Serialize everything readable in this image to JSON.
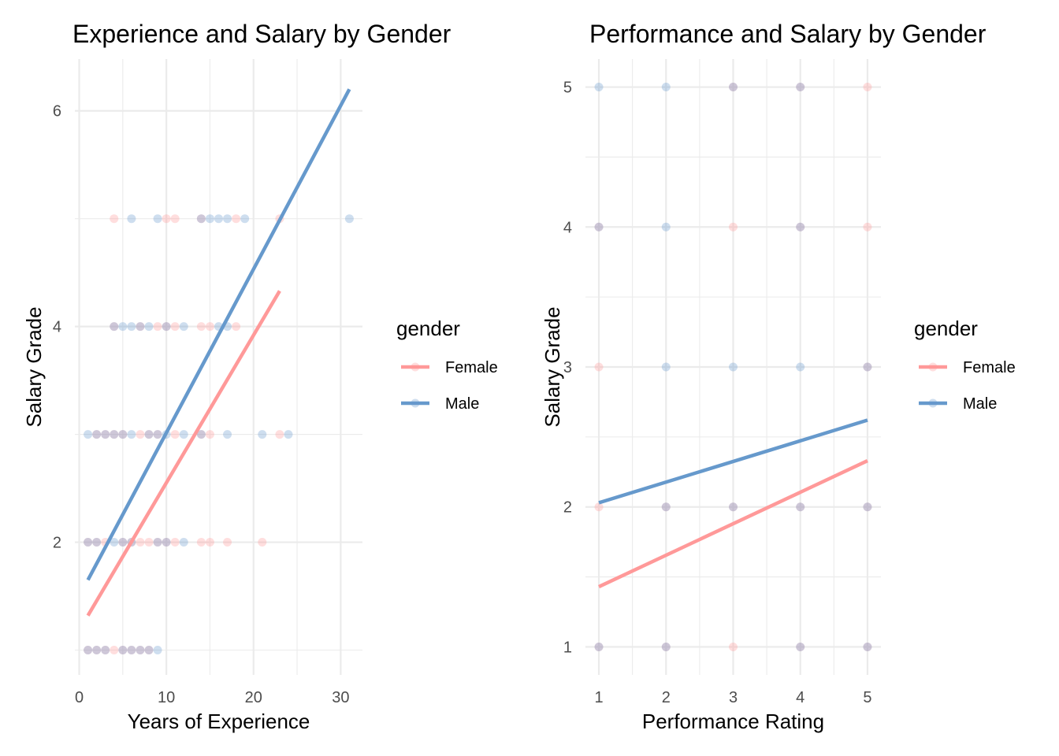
{
  "chart_data": [
    {
      "type": "scatter",
      "title": "Experience and Salary by Gender",
      "xlabel": "Years of Experience",
      "ylabel": "Salary Grade",
      "xlim": [
        -0.5,
        32.5
      ],
      "ylim": [
        0.77,
        6.48
      ],
      "x_ticks": [
        0,
        10,
        20,
        30
      ],
      "y_ticks": [
        2,
        4,
        6
      ],
      "x_minor": [
        5,
        15,
        25
      ],
      "y_minor": [
        1,
        3,
        5
      ],
      "grid": true,
      "legend": {
        "title": "gender",
        "position": "right",
        "entries": [
          "Female",
          "Male"
        ]
      },
      "colors": {
        "Female": "#ff9999",
        "Male": "#6699cc"
      },
      "series": [
        {
          "name": "Female",
          "points": [
            [
              1,
              1
            ],
            [
              2,
              1
            ],
            [
              3,
              1
            ],
            [
              4,
              1
            ],
            [
              5,
              1
            ],
            [
              6,
              1
            ],
            [
              7,
              1
            ],
            [
              8,
              1
            ],
            [
              1,
              2
            ],
            [
              2,
              2
            ],
            [
              3,
              2
            ],
            [
              5,
              2
            ],
            [
              6,
              2
            ],
            [
              7,
              2
            ],
            [
              8,
              2
            ],
            [
              9,
              2
            ],
            [
              10,
              2
            ],
            [
              11,
              2
            ],
            [
              14,
              2
            ],
            [
              15,
              2
            ],
            [
              17,
              2
            ],
            [
              21,
              2
            ],
            [
              2,
              3
            ],
            [
              3,
              3
            ],
            [
              4,
              3
            ],
            [
              5,
              3
            ],
            [
              7,
              3
            ],
            [
              8,
              3
            ],
            [
              9,
              3
            ],
            [
              11,
              3
            ],
            [
              14,
              3
            ],
            [
              15,
              3
            ],
            [
              23,
              3
            ],
            [
              4,
              4
            ],
            [
              7,
              4
            ],
            [
              9,
              4
            ],
            [
              10,
              4
            ],
            [
              11,
              4
            ],
            [
              14,
              4
            ],
            [
              15,
              4
            ],
            [
              18,
              4
            ],
            [
              4,
              5
            ],
            [
              10,
              5
            ],
            [
              11,
              5
            ],
            [
              14,
              5
            ],
            [
              18,
              5
            ],
            [
              23,
              5
            ]
          ],
          "fit": {
            "x": [
              1,
              23
            ],
            "y": [
              1.32,
              4.33
            ]
          }
        },
        {
          "name": "Male",
          "points": [
            [
              1,
              1
            ],
            [
              2,
              1
            ],
            [
              3,
              1
            ],
            [
              5,
              1
            ],
            [
              6,
              1
            ],
            [
              7,
              1
            ],
            [
              8,
              1
            ],
            [
              9,
              1
            ],
            [
              1,
              2
            ],
            [
              2,
              2
            ],
            [
              4,
              2
            ],
            [
              5,
              2
            ],
            [
              6,
              2
            ],
            [
              9,
              2
            ],
            [
              10,
              2
            ],
            [
              12,
              2
            ],
            [
              1,
              3
            ],
            [
              2,
              3
            ],
            [
              3,
              3
            ],
            [
              4,
              3
            ],
            [
              5,
              3
            ],
            [
              6,
              3
            ],
            [
              8,
              3
            ],
            [
              9,
              3
            ],
            [
              10,
              3
            ],
            [
              12,
              3
            ],
            [
              14,
              3
            ],
            [
              17,
              3
            ],
            [
              21,
              3
            ],
            [
              24,
              3
            ],
            [
              4,
              4
            ],
            [
              5,
              4
            ],
            [
              6,
              4
            ],
            [
              7,
              4
            ],
            [
              8,
              4
            ],
            [
              10,
              4
            ],
            [
              12,
              4
            ],
            [
              16,
              4
            ],
            [
              17,
              4
            ],
            [
              6,
              5
            ],
            [
              9,
              5
            ],
            [
              14,
              5
            ],
            [
              15,
              5
            ],
            [
              16,
              5
            ],
            [
              17,
              5
            ],
            [
              19,
              5
            ],
            [
              31,
              5
            ]
          ],
          "fit": {
            "x": [
              1,
              31
            ],
            "y": [
              1.65,
              6.2
            ]
          }
        }
      ]
    },
    {
      "type": "scatter",
      "title": "Performance and Salary by Gender",
      "xlabel": "Performance Rating",
      "ylabel": "Salary Grade",
      "xlim": [
        0.8,
        5.2
      ],
      "ylim": [
        0.8,
        5.2
      ],
      "x_ticks": [
        1,
        2,
        3,
        4,
        5
      ],
      "y_ticks": [
        1,
        2,
        3,
        4,
        5
      ],
      "x_minor": [
        1.5,
        2.5,
        3.5,
        4.5
      ],
      "y_minor": [
        1.5,
        2.5,
        3.5,
        4.5
      ],
      "grid": true,
      "legend": {
        "title": "gender",
        "position": "right",
        "entries": [
          "Female",
          "Male"
        ]
      },
      "colors": {
        "Female": "#ff9999",
        "Male": "#6699cc"
      },
      "series": [
        {
          "name": "Female",
          "points": [
            [
              1,
              1
            ],
            [
              2,
              1
            ],
            [
              3,
              1
            ],
            [
              4,
              1
            ],
            [
              5,
              1
            ],
            [
              1,
              2
            ],
            [
              2,
              2
            ],
            [
              3,
              2
            ],
            [
              4,
              2
            ],
            [
              5,
              2
            ],
            [
              1,
              3
            ],
            [
              5,
              3
            ],
            [
              1,
              4
            ],
            [
              3,
              4
            ],
            [
              4,
              4
            ],
            [
              5,
              4
            ],
            [
              4,
              5
            ],
            [
              3,
              5
            ],
            [
              5,
              5
            ]
          ],
          "fit": {
            "x": [
              1,
              5
            ],
            "y": [
              1.43,
              2.33
            ]
          }
        },
        {
          "name": "Male",
          "points": [
            [
              1,
              1
            ],
            [
              2,
              1
            ],
            [
              4,
              1
            ],
            [
              5,
              1
            ],
            [
              2,
              2
            ],
            [
              3,
              2
            ],
            [
              4,
              2
            ],
            [
              5,
              2
            ],
            [
              2,
              3
            ],
            [
              3,
              3
            ],
            [
              4,
              3
            ],
            [
              5,
              3
            ],
            [
              1,
              4
            ],
            [
              2,
              4
            ],
            [
              4,
              4
            ],
            [
              1,
              5
            ],
            [
              2,
              5
            ],
            [
              3,
              5
            ],
            [
              4,
              5
            ]
          ],
          "fit": {
            "x": [
              1,
              5
            ],
            "y": [
              2.03,
              2.62
            ]
          }
        }
      ]
    }
  ]
}
